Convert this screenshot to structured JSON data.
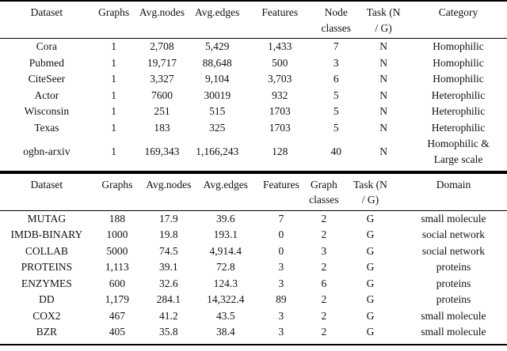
{
  "colors": {
    "background": "#ffffff",
    "rule": "#000000",
    "text": "#111111"
  },
  "tables": [
    {
      "headers": [
        "Dataset",
        "Graphs",
        "Avg.nodes",
        "Avg.edges",
        "Features",
        "Node\nclasses",
        "Task (N\n/ G)",
        "Category"
      ],
      "rows": [
        [
          "Cora",
          "1",
          "2,708",
          "5,429",
          "1,433",
          "7",
          "N",
          "Homophilic"
        ],
        [
          "Pubmed",
          "1",
          "19,717",
          "88,648",
          "500",
          "3",
          "N",
          "Homophilic"
        ],
        [
          "CiteSeer",
          "1",
          "3,327",
          "9,104",
          "3,703",
          "6",
          "N",
          "Homophilic"
        ],
        [
          "Actor",
          "1",
          "7600",
          "30019",
          "932",
          "5",
          "N",
          "Heterophilic"
        ],
        [
          "Wisconsin",
          "1",
          "251",
          "515",
          "1703",
          "5",
          "N",
          "Heterophilic"
        ],
        [
          "Texas",
          "1",
          "183",
          "325",
          "1703",
          "5",
          "N",
          "Heterophilic"
        ],
        [
          "ogbn-arxiv",
          "1",
          "169,343",
          "1,166,243",
          "128",
          "40",
          "N",
          "Homophilic &\nLarge scale"
        ]
      ]
    },
    {
      "headers": [
        "Dataset",
        "Graphs",
        "Avg.nodes",
        "Avg.edges",
        "Features",
        "Graph\nclasses",
        "Task (N\n/ G)",
        "Domain"
      ],
      "rows": [
        [
          "MUTAG",
          "188",
          "17.9",
          "39.6",
          "7",
          "2",
          "G",
          "small molecule"
        ],
        [
          "IMDB-BINARY",
          "1000",
          "19.8",
          "193.1",
          "0",
          "2",
          "G",
          "social network"
        ],
        [
          "COLLAB",
          "5000",
          "74.5",
          "4,914.4",
          "0",
          "3",
          "G",
          "social network"
        ],
        [
          "PROTEINS",
          "1,113",
          "39.1",
          "72.8",
          "3",
          "2",
          "G",
          "proteins"
        ],
        [
          "ENZYMES",
          "600",
          "32.6",
          "124.3",
          "3",
          "6",
          "G",
          "proteins"
        ],
        [
          "DD",
          "1,179",
          "284.1",
          "14,322.4",
          "89",
          "2",
          "G",
          "proteins"
        ],
        [
          "COX2",
          "467",
          "41.2",
          "43.5",
          "3",
          "2",
          "G",
          "small molecule"
        ],
        [
          "BZR",
          "405",
          "35.8",
          "38.4",
          "3",
          "2",
          "G",
          "small molecule"
        ]
      ]
    }
  ]
}
